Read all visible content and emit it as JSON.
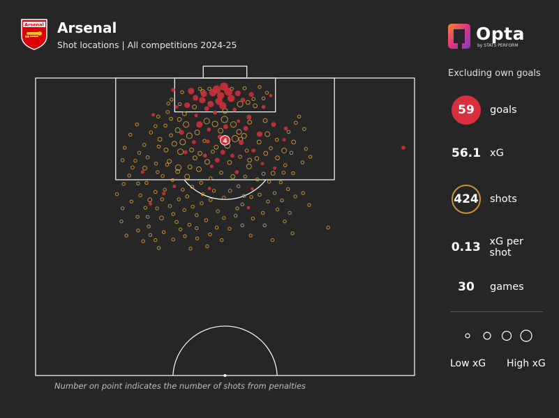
{
  "header": {
    "team": "Arsenal",
    "subtitle": "Shot locations | All competitions 2024-25",
    "crest_text": "Arsenal"
  },
  "brand": {
    "name": "Opta",
    "by": "by STATS PERFORM"
  },
  "stats": {
    "note": "Excluding own goals",
    "goals_value": "59",
    "goals_label": "goals",
    "xg_value": "56.1",
    "xg_label": "xG",
    "shots_value": "424",
    "shots_label": "shots",
    "xg_per_shot_value": "0.13",
    "xg_per_shot_label": "xG per shot",
    "games_value": "30",
    "games_label": "games"
  },
  "legend": {
    "low": "Low xG",
    "high": "High xG"
  },
  "footnote": "Number on point indicates the number of shots from penalties",
  "colors": {
    "background": "#262626",
    "goal": "#d7303c",
    "shot": "#c8933a",
    "pitch_line": "#ffffff"
  },
  "chart_data": {
    "type": "scatter",
    "description_units": "pitch coordinates in metres: x across the width (0-68, left touchline to right), y distance from the goal line (0-52.5 half pitch)",
    "xlim": [
      0,
      68
    ],
    "ylim": [
      0,
      52.5
    ],
    "penalty_label": "4",
    "penalty_point": {
      "x": 34,
      "y": 11,
      "r": 1.0
    },
    "goals": [
      [
        32.5,
        2.0,
        1.0
      ],
      [
        33.8,
        1.5,
        1.0
      ],
      [
        31.8,
        2.6,
        0.9
      ],
      [
        34.6,
        2.4,
        1.0
      ],
      [
        33.2,
        3.1,
        0.9
      ],
      [
        32.9,
        4.1,
        0.9
      ],
      [
        30.2,
        2.8,
        0.8
      ],
      [
        27.9,
        2.3,
        0.8
      ],
      [
        28.7,
        3.5,
        0.7
      ],
      [
        29.9,
        3.9,
        0.8
      ],
      [
        31.4,
        4.6,
        0.8
      ],
      [
        33.6,
        4.9,
        0.9
      ],
      [
        35.1,
        3.6,
        0.9
      ],
      [
        36.3,
        2.7,
        0.7
      ],
      [
        37.2,
        3.9,
        0.6
      ],
      [
        38.7,
        2.9,
        0.6
      ],
      [
        27.2,
        4.8,
        0.7
      ],
      [
        30.7,
        5.4,
        0.6
      ],
      [
        32.2,
        6.1,
        0.5
      ],
      [
        35.7,
        5.6,
        0.5
      ],
      [
        24.7,
        2.1,
        0.5
      ],
      [
        40.9,
        5.1,
        0.5
      ],
      [
        38.3,
        6.9,
        0.6
      ],
      [
        29.4,
        8.2,
        0.8
      ],
      [
        26.2,
        9.6,
        0.6
      ],
      [
        34.1,
        8.6,
        0.6
      ],
      [
        31.1,
        9.1,
        0.5
      ],
      [
        37.7,
        8.9,
        0.6
      ],
      [
        40.2,
        9.9,
        0.7
      ],
      [
        42.7,
        8.2,
        0.6
      ],
      [
        44.9,
        8.9,
        0.5
      ],
      [
        28.4,
        11.3,
        0.5
      ],
      [
        36.9,
        11.4,
        0.6
      ],
      [
        30.4,
        13.7,
        0.5
      ],
      [
        33.6,
        13.1,
        0.6
      ],
      [
        39.1,
        12.8,
        0.5
      ],
      [
        26.9,
        13.1,
        0.5
      ],
      [
        35.3,
        13.7,
        0.5
      ],
      [
        32.6,
        14.5,
        0.6
      ],
      [
        31.6,
        15.6,
        0.4
      ],
      [
        40.7,
        15.1,
        0.4
      ],
      [
        42.9,
        15.9,
        0.4
      ],
      [
        36.1,
        16.6,
        0.5
      ],
      [
        19.2,
        16.6,
        0.4
      ],
      [
        31.2,
        19.5,
        0.4
      ],
      [
        38.9,
        19.6,
        0.4
      ],
      [
        20.6,
        22.2,
        0.4
      ],
      [
        38.2,
        22.9,
        0.4
      ],
      [
        24.9,
        19.1,
        0.4
      ],
      [
        44.6,
        10.9,
        0.4
      ],
      [
        21.1,
        6.5,
        0.4
      ],
      [
        30.9,
        11.2,
        0.5
      ],
      [
        33.1,
        10.4,
        0.6
      ],
      [
        25.3,
        5.1,
        0.4
      ],
      [
        42.2,
        3.1,
        0.4
      ],
      [
        36.4,
        7.6,
        0.4
      ],
      [
        28.8,
        6.6,
        0.4
      ],
      [
        66.0,
        12.3,
        0.5
      ],
      [
        23.0,
        20.4,
        0.4
      ]
    ],
    "shots": [
      [
        25.9,
        4.6,
        0.3
      ],
      [
        23.8,
        4.5,
        0.3
      ],
      [
        24.4,
        3.8,
        0.3
      ],
      [
        40.2,
        1.6,
        0.3
      ],
      [
        41.5,
        2.6,
        0.3
      ],
      [
        40.9,
        3.6,
        0.3
      ],
      [
        35.2,
        1.9,
        0.4
      ],
      [
        37.5,
        1.8,
        0.4
      ],
      [
        29.5,
        1.9,
        0.4
      ],
      [
        31.2,
        1.9,
        0.4
      ],
      [
        30.0,
        2.4,
        0.5
      ],
      [
        36.7,
        4.6,
        0.7
      ],
      [
        39.4,
        4.9,
        0.5
      ],
      [
        38.1,
        4.3,
        0.5
      ],
      [
        26.7,
        6.3,
        0.5
      ],
      [
        24.3,
        7.2,
        0.4
      ],
      [
        23.3,
        8.4,
        0.4
      ],
      [
        22.0,
        6.8,
        0.4
      ],
      [
        21.5,
        8.5,
        0.3
      ],
      [
        20.7,
        9.6,
        0.4
      ],
      [
        22.3,
        10.8,
        0.5
      ],
      [
        19.5,
        11.8,
        0.4
      ],
      [
        18.6,
        13.2,
        0.3
      ],
      [
        20.1,
        14.0,
        0.4
      ],
      [
        21.6,
        15.1,
        0.3
      ],
      [
        19.6,
        15.9,
        0.5
      ],
      [
        22.8,
        17.3,
        0.3
      ],
      [
        18.4,
        18.6,
        0.3
      ],
      [
        17.4,
        15.8,
        0.4
      ],
      [
        16.0,
        12.3,
        0.3
      ],
      [
        15.6,
        14.5,
        0.4
      ],
      [
        17.0,
        10.0,
        0.3
      ],
      [
        18.2,
        8.2,
        0.3
      ],
      [
        23.4,
        12.7,
        0.5
      ],
      [
        24.9,
        11.6,
        0.6
      ],
      [
        24.0,
        14.7,
        0.5
      ],
      [
        25.6,
        15.8,
        0.7
      ],
      [
        26.0,
        13.0,
        0.7
      ],
      [
        27.7,
        15.7,
        0.5
      ],
      [
        27.2,
        17.4,
        0.6
      ],
      [
        28.6,
        14.1,
        0.5
      ],
      [
        29.3,
        16.1,
        0.6
      ],
      [
        30.3,
        11.1,
        0.4
      ],
      [
        29.0,
        9.6,
        0.6
      ],
      [
        27.6,
        10.2,
        0.7
      ],
      [
        26.4,
        11.3,
        0.7
      ],
      [
        25.5,
        9.2,
        0.6
      ],
      [
        27.0,
        8.2,
        0.7
      ],
      [
        30.7,
        7.6,
        0.7
      ],
      [
        32.2,
        8.1,
        0.7
      ],
      [
        33.9,
        7.3,
        0.8
      ],
      [
        35.5,
        8.2,
        0.7
      ],
      [
        36.5,
        9.5,
        0.6
      ],
      [
        37.4,
        10.2,
        0.6
      ],
      [
        35.8,
        10.7,
        0.8
      ],
      [
        34.4,
        11.9,
        0.7
      ],
      [
        32.4,
        12.2,
        0.5
      ],
      [
        31.8,
        13.0,
        0.4
      ],
      [
        34.8,
        14.9,
        0.5
      ],
      [
        36.7,
        13.9,
        0.4
      ],
      [
        37.9,
        12.8,
        0.4
      ],
      [
        38.3,
        15.6,
        0.6
      ],
      [
        39.7,
        14.2,
        0.5
      ],
      [
        41.3,
        13.3,
        0.5
      ],
      [
        40.1,
        11.3,
        0.5
      ],
      [
        41.6,
        9.9,
        0.6
      ],
      [
        43.3,
        10.9,
        0.4
      ],
      [
        42.2,
        12.4,
        0.4
      ],
      [
        44.6,
        12.8,
        0.6
      ],
      [
        43.4,
        14.1,
        0.5
      ],
      [
        42.6,
        16.8,
        0.5
      ],
      [
        44.8,
        15.4,
        0.4
      ],
      [
        45.9,
        13.2,
        0.4
      ],
      [
        46.3,
        11.3,
        0.5
      ],
      [
        45.4,
        9.5,
        0.4
      ],
      [
        46.7,
        7.9,
        0.4
      ],
      [
        48.2,
        9.0,
        0.4
      ],
      [
        47.3,
        6.8,
        0.3
      ],
      [
        48.5,
        12.5,
        0.3
      ],
      [
        47.9,
        14.9,
        0.3
      ],
      [
        49.3,
        13.9,
        0.3
      ],
      [
        46.2,
        16.8,
        0.3
      ],
      [
        44.0,
        18.4,
        0.3
      ],
      [
        41.9,
        18.3,
        0.3
      ],
      [
        39.8,
        17.9,
        0.4
      ],
      [
        37.6,
        17.4,
        0.3
      ],
      [
        35.4,
        17.4,
        0.5
      ],
      [
        33.3,
        16.7,
        0.4
      ],
      [
        31.4,
        17.7,
        0.3
      ],
      [
        29.7,
        18.5,
        0.3
      ],
      [
        28.1,
        19.2,
        0.4
      ],
      [
        26.4,
        19.7,
        0.3
      ],
      [
        24.6,
        18.0,
        0.3
      ],
      [
        23.2,
        19.7,
        0.3
      ],
      [
        21.5,
        20.1,
        0.4
      ],
      [
        20.5,
        21.5,
        0.5
      ],
      [
        19.7,
        22.9,
        0.3
      ],
      [
        20.1,
        24.5,
        0.3
      ],
      [
        21.8,
        23.0,
        0.3
      ],
      [
        22.6,
        24.7,
        0.5
      ],
      [
        24.1,
        22.6,
        0.4
      ],
      [
        25.7,
        21.4,
        0.3
      ],
      [
        26.7,
        23.3,
        0.3
      ],
      [
        25.3,
        25.4,
        0.4
      ],
      [
        27.6,
        25.9,
        0.4
      ],
      [
        28.9,
        24.2,
        0.3
      ],
      [
        29.8,
        22.1,
        0.3
      ],
      [
        31.4,
        21.5,
        0.4
      ],
      [
        32.7,
        23.5,
        0.3
      ],
      [
        30.6,
        25.1,
        0.4
      ],
      [
        31.3,
        27.6,
        0.3
      ],
      [
        29.0,
        28.3,
        0.3
      ],
      [
        26.8,
        27.9,
        0.3
      ],
      [
        24.7,
        28.5,
        0.3
      ],
      [
        23.0,
        27.2,
        0.3
      ],
      [
        21.5,
        28.6,
        0.3
      ],
      [
        22.1,
        30.0,
        0.3
      ],
      [
        27.8,
        30.1,
        0.3
      ],
      [
        30.8,
        29.7,
        0.3
      ],
      [
        33.4,
        28.6,
        0.3
      ],
      [
        34.8,
        26.6,
        0.3
      ],
      [
        35.9,
        24.3,
        0.3
      ],
      [
        37.1,
        22.3,
        0.3
      ],
      [
        38.7,
        21.0,
        0.3
      ],
      [
        40.2,
        20.6,
        0.4
      ],
      [
        41.7,
        21.8,
        0.3
      ],
      [
        42.9,
        20.3,
        0.3
      ],
      [
        44.2,
        21.6,
        0.3
      ],
      [
        45.3,
        19.6,
        0.3
      ],
      [
        46.6,
        20.9,
        0.3
      ],
      [
        43.4,
        23.2,
        0.3
      ],
      [
        40.8,
        23.8,
        0.3
      ],
      [
        39.0,
        24.8,
        0.3
      ],
      [
        37.1,
        26.0,
        0.3
      ],
      [
        38.6,
        27.8,
        0.3
      ],
      [
        41.1,
        26.0,
        0.3
      ],
      [
        42.5,
        28.6,
        0.3
      ],
      [
        44.7,
        25.3,
        0.3
      ],
      [
        45.6,
        23.8,
        0.3
      ],
      [
        48.0,
        20.3,
        0.3
      ],
      [
        49.1,
        22.4,
        0.3
      ],
      [
        46.1,
        27.4,
        0.3
      ],
      [
        52.5,
        26.4,
        0.3
      ],
      [
        14.6,
        20.5,
        0.3
      ],
      [
        15.6,
        23.0,
        0.3
      ],
      [
        15.4,
        25.3,
        0.3
      ],
      [
        17.2,
        21.8,
        0.3
      ],
      [
        18.3,
        24.5,
        0.3
      ],
      [
        18.4,
        26.9,
        0.3
      ],
      [
        16.3,
        27.8,
        0.3
      ],
      [
        19.3,
        28.8,
        0.3
      ],
      [
        20.3,
        26.2,
        0.3
      ],
      [
        29.5,
        13.3,
        0.5
      ],
      [
        25.8,
        7.3,
        0.5
      ],
      [
        34.0,
        5.8,
        0.6
      ],
      [
        38.4,
        7.8,
        0.5
      ],
      [
        41.2,
        7.5,
        0.5
      ],
      [
        28.5,
        5.1,
        0.5
      ],
      [
        23.7,
        6.0,
        0.4
      ],
      [
        26.3,
        2.5,
        0.3
      ],
      [
        39.1,
        3.7,
        0.4
      ],
      [
        36.8,
        10.8,
        0.5
      ],
      [
        33.2,
        9.3,
        0.6
      ],
      [
        24.3,
        10.1,
        0.4
      ],
      [
        22.1,
        12.1,
        0.4
      ],
      [
        28.0,
        12.7,
        0.5
      ],
      [
        30.8,
        14.8,
        0.6
      ],
      [
        38.4,
        14.5,
        0.5
      ],
      [
        40.9,
        16.9,
        0.4
      ],
      [
        44.5,
        16.7,
        0.3
      ],
      [
        25.5,
        16.5,
        0.5
      ],
      [
        23.6,
        15.3,
        0.4
      ],
      [
        19.9,
        18.5,
        0.3
      ],
      [
        21.9,
        16.6,
        0.3
      ],
      [
        27.2,
        20.9,
        0.4
      ],
      [
        34.9,
        19.9,
        0.4
      ],
      [
        36.4,
        19.1,
        0.3
      ],
      [
        32.0,
        19.9,
        0.3
      ],
      [
        30.0,
        20.5,
        0.3
      ],
      [
        33.8,
        21.1,
        0.3
      ],
      [
        37.4,
        20.8,
        0.3
      ],
      [
        36.2,
        23.0,
        0.3
      ],
      [
        33.8,
        24.7,
        0.3
      ],
      [
        28.2,
        22.7,
        0.3
      ],
      [
        24.7,
        24.0,
        0.3
      ],
      [
        22.7,
        21.4,
        0.3
      ],
      [
        32.5,
        26.4,
        0.3
      ],
      [
        28.9,
        26.5,
        0.3
      ],
      [
        26.0,
        26.7,
        0.3
      ],
      [
        20.6,
        27.7,
        0.3
      ],
      [
        18.8,
        20.7,
        0.3
      ],
      [
        16.8,
        17.2,
        0.3
      ],
      [
        17.9,
        14.6,
        0.3
      ],
      [
        15.8,
        18.7,
        0.3
      ]
    ]
  }
}
